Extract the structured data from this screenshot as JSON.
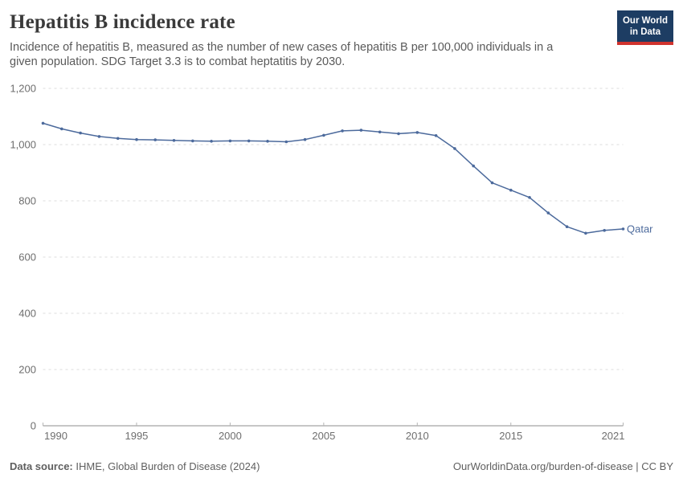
{
  "header": {
    "title": "Hepatitis B incidence rate",
    "subtitle": "Incidence of hepatitis B, measured as the number of new cases of hepatitis B per 100,000 individuals in a given population. SDG Target 3.3 is to combat heptatitis by 2030.",
    "logo": {
      "line1": "Our World",
      "line2": "in Data"
    }
  },
  "chart_data": {
    "type": "line",
    "title": "Hepatitis B incidence rate",
    "x": [
      1990,
      1991,
      1992,
      1993,
      1994,
      1995,
      1996,
      1997,
      1998,
      1999,
      2000,
      2001,
      2002,
      2003,
      2004,
      2005,
      2006,
      2007,
      2008,
      2009,
      2010,
      2011,
      2012,
      2013,
      2014,
      2015,
      2016,
      2017,
      2018,
      2019,
      2020,
      2021
    ],
    "series": [
      {
        "name": "Qatar",
        "color": "#4c6a9c",
        "values": [
          1076,
          1056,
          1041,
          1029,
          1022,
          1018,
          1017,
          1015,
          1013,
          1012,
          1013,
          1013,
          1012,
          1010,
          1018,
          1033,
          1049,
          1051,
          1045,
          1039,
          1043,
          1032,
          986,
          924,
          864,
          838,
          812,
          757,
          708,
          685,
          695,
          700
        ]
      }
    ],
    "xlabel": "",
    "ylabel": "",
    "xlim": [
      1990,
      2021
    ],
    "ylim": [
      0,
      1200
    ],
    "x_ticks": [
      1990,
      1995,
      2000,
      2005,
      2010,
      2015,
      2021
    ],
    "y_ticks": [
      0,
      200,
      400,
      600,
      800,
      1000,
      1200
    ],
    "grid": "horizontal-dashed",
    "legend": "end-of-line-label"
  },
  "footer": {
    "data_source_label": "Data source:",
    "data_source_value": " IHME, Global Burden of Disease (2024)",
    "credit": "OurWorldinData.org/burden-of-disease | CC BY"
  },
  "colors": {
    "line": "#4c6a9c",
    "gridline": "#dcdcdc",
    "axis": "#8c8c8c",
    "tick_label": "#6e6e6e",
    "logo_bg": "#1d3d63",
    "logo_stripe": "#d0332e"
  }
}
